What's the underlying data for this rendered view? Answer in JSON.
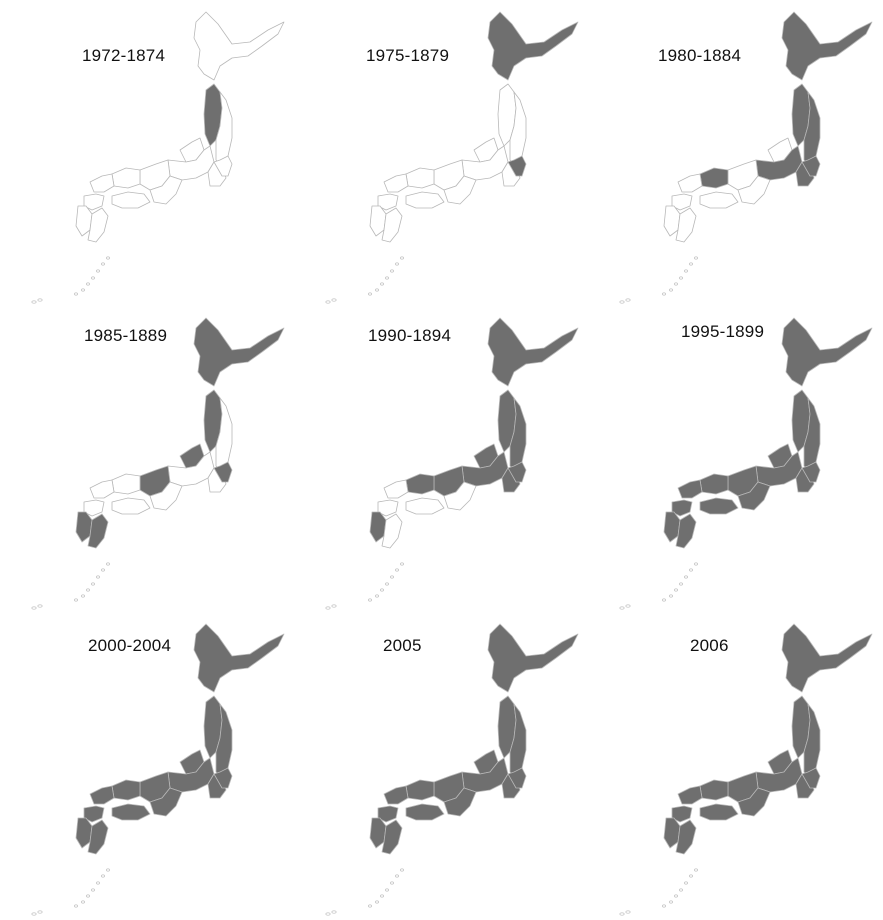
{
  "colors": {
    "filled": "#6f6f6f",
    "empty": "#ffffff",
    "border": "#b8b8b8",
    "label": "#111111"
  },
  "panels": [
    {
      "label": "1972-1874",
      "filled": [
        "tohoku_w"
      ]
    },
    {
      "label": "1975-1879",
      "filled": [
        "hokkaido",
        "kanto_e"
      ]
    },
    {
      "label": "1980-1884",
      "filled": [
        "hokkaido",
        "tohoku_e",
        "tohoku_w",
        "kanto_e",
        "chubu",
        "kanto",
        "chugoku_e"
      ]
    },
    {
      "label": "1985-1889",
      "filled": [
        "hokkaido",
        "tohoku_w",
        "chubu_n",
        "kanto_e",
        "kinki_e",
        "kyushu_w",
        "kyushu_s"
      ]
    },
    {
      "label": "1990-1894",
      "filled": [
        "hokkaido",
        "tohoku_e",
        "tohoku_w",
        "chubu",
        "chubu_n",
        "kanto",
        "kanto_e",
        "kinki_e",
        "chugoku_e",
        "kyushu_w"
      ]
    },
    {
      "label": "1995-1899",
      "filled": [
        "hokkaido",
        "tohoku_e",
        "tohoku_w",
        "chubu",
        "chubu_n",
        "kanto",
        "kanto_e",
        "kinki",
        "kinki_e",
        "chugoku",
        "chugoku_e",
        "shikoku",
        "kyushu_n",
        "kyushu_w",
        "kyushu_s"
      ]
    },
    {
      "label": "2000-2004",
      "filled": [
        "hokkaido",
        "tohoku_e",
        "tohoku_w",
        "chubu",
        "chubu_n",
        "kanto",
        "kanto_e",
        "kinki",
        "kinki_e",
        "chugoku",
        "chugoku_e",
        "shikoku",
        "kyushu_n",
        "kyushu_w",
        "kyushu_s"
      ]
    },
    {
      "label": "2005",
      "filled": [
        "hokkaido",
        "tohoku_e",
        "tohoku_w",
        "chubu",
        "chubu_n",
        "kanto",
        "kanto_e",
        "kinki",
        "kinki_e",
        "chugoku",
        "chugoku_e",
        "shikoku",
        "kyushu_n",
        "kyushu_w",
        "kyushu_s"
      ]
    },
    {
      "label": "2006",
      "filled": [
        "hokkaido",
        "tohoku_e",
        "tohoku_w",
        "chubu",
        "chubu_n",
        "kanto",
        "kanto_e",
        "kinki",
        "kinki_e",
        "chugoku",
        "chugoku_e",
        "shikoku",
        "kyushu_n",
        "kyushu_w",
        "kyushu_s"
      ]
    }
  ]
}
